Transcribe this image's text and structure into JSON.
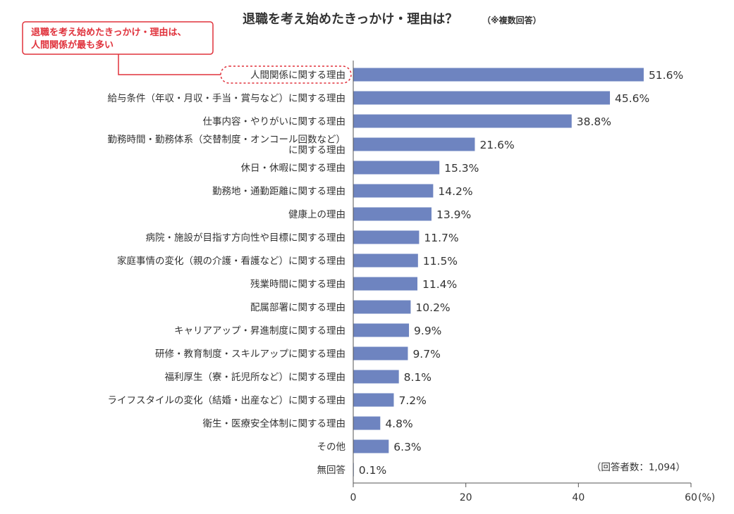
{
  "chart_data": {
    "type": "bar",
    "orientation": "horizontal",
    "title": "退職を考え始めたきっかけ・理由は？",
    "title_note": "（※複数回答）",
    "callout": [
      "退職を考え始めたきっかけ・理由は、",
      "人間関係が最も多い"
    ],
    "respondents": "（回答者数：1,094）",
    "unit": "(%)",
    "xlim": [
      0,
      60
    ],
    "xticks": [
      0,
      20,
      40,
      60
    ],
    "bar_color": "#6e84c0",
    "accent_color": "#e0323c",
    "grid": false,
    "categories": [
      [
        "人間関係に関する理由"
      ],
      [
        "給与条件（年収・月収・手当・賞与など）に関する理由"
      ],
      [
        "仕事内容・やりがいに関する理由"
      ],
      [
        "勤務時間・勤務体系（交替制度・オンコール回数など）",
        "に関する理由"
      ],
      [
        "休日・休暇に関する理由"
      ],
      [
        "勤務地・通勤距離に関する理由"
      ],
      [
        "健康上の理由"
      ],
      [
        "病院・施設が目指す方向性や目標に関する理由"
      ],
      [
        "家庭事情の変化（親の介護・看護など）に関する理由"
      ],
      [
        "残業時間に関する理由"
      ],
      [
        "配属部署に関する理由"
      ],
      [
        "キャリアアップ・昇進制度に関する理由"
      ],
      [
        "研修・教育制度・スキルアップに関する理由"
      ],
      [
        "福利厚生（寮・託児所など）に関する理由"
      ],
      [
        "ライフスタイルの変化（結婚・出産など）に関する理由"
      ],
      [
        "衛生・医療安全体制に関する理由"
      ],
      [
        "その他"
      ],
      [
        "無回答"
      ]
    ],
    "values": [
      51.6,
      45.6,
      38.8,
      21.6,
      15.3,
      14.2,
      13.9,
      11.7,
      11.5,
      11.4,
      10.2,
      9.9,
      9.7,
      8.1,
      7.2,
      4.8,
      6.3,
      0.1
    ],
    "value_labels": [
      "51.6%",
      "45.6%",
      "38.8%",
      "21.6%",
      "15.3%",
      "14.2%",
      "13.9%",
      "11.7%",
      "11.5%",
      "11.4%",
      "10.2%",
      "9.9%",
      "9.7%",
      "8.1%",
      "7.2%",
      "4.8%",
      "6.3%",
      "0.1%"
    ],
    "highlighted_category_index": 0
  }
}
